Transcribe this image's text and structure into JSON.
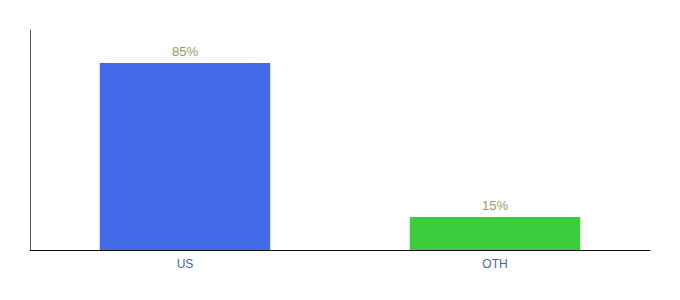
{
  "chart_data": {
    "type": "bar",
    "categories": [
      "US",
      "OTH"
    ],
    "values": [
      85,
      15
    ],
    "value_labels": [
      "85%",
      "15%"
    ],
    "colors": [
      "#4169e8",
      "#3dcc3d"
    ],
    "ylim": [
      0,
      100
    ],
    "data_labels": true,
    "tick_labels": "x",
    "grid": false
  }
}
